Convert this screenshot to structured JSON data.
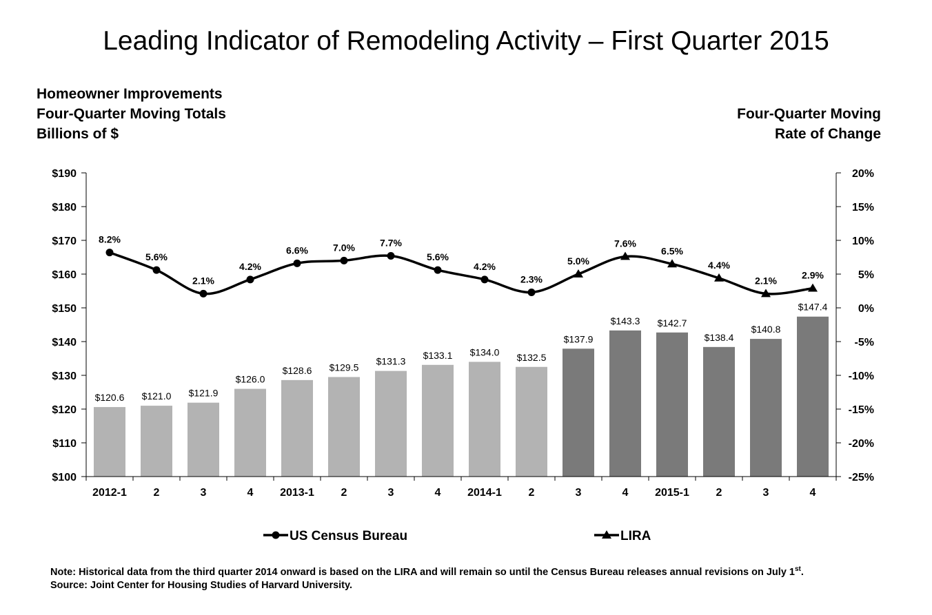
{
  "title": "Leading Indicator of Remodeling Activity – First Quarter 2015",
  "left_axis_title": [
    "Homeowner Improvements",
    "Four-Quarter Moving Totals",
    "Billions of $"
  ],
  "right_axis_title": [
    "Four-Quarter Moving",
    "Rate of Change"
  ],
  "note": {
    "line1": "Note: Historical data from the third quarter 2014 onward is based on the LIRA and will remain so until the Census Bureau releases annual revisions on July 1",
    "line1_sup": "st",
    "line1_end": ".",
    "source": "Source: Joint Center for Housing Studies of Harvard University."
  },
  "colors": {
    "census_bar": "#b3b3b3",
    "lira_bar": "#7a7a7a",
    "line": "#000000"
  },
  "chart_data": {
    "type": "bar",
    "categories": [
      "2012-1",
      "2",
      "3",
      "4",
      "2013-1",
      "2",
      "3",
      "4",
      "2014-1",
      "2",
      "3",
      "4",
      "2015-1",
      "2",
      "3",
      "4"
    ],
    "bars": {
      "values": [
        120.6,
        121.0,
        121.9,
        126.0,
        128.6,
        129.5,
        131.3,
        133.1,
        134.0,
        132.5,
        137.9,
        143.3,
        142.7,
        138.4,
        140.8,
        147.4
      ],
      "labels": [
        "$120.6",
        "$121.0",
        "$121.9",
        "$126.0",
        "$128.6",
        "$129.5",
        "$131.3",
        "$133.1",
        "$134.0",
        "$132.5",
        "$137.9",
        "$143.3",
        "$142.7",
        "$138.4",
        "$140.8",
        "$147.4"
      ],
      "source": [
        "census",
        "census",
        "census",
        "census",
        "census",
        "census",
        "census",
        "census",
        "census",
        "census",
        "lira",
        "lira",
        "lira",
        "lira",
        "lira",
        "lira"
      ]
    },
    "line": {
      "values": [
        8.2,
        5.6,
        2.1,
        4.2,
        6.6,
        7.0,
        7.7,
        5.6,
        4.2,
        2.3,
        5.0,
        7.6,
        6.5,
        4.4,
        2.1,
        2.9
      ],
      "labels": [
        "8.2%",
        "5.6%",
        "2.1%",
        "4.2%",
        "6.6%",
        "7.0%",
        "7.7%",
        "5.6%",
        "4.2%",
        "2.3%",
        "5.0%",
        "7.6%",
        "6.5%",
        "4.4%",
        "2.1%",
        "2.9%"
      ],
      "census_count": 10
    },
    "legend": [
      {
        "name": "US Census Bureau",
        "marker": "circle"
      },
      {
        "name": "LIRA",
        "marker": "triangle"
      }
    ],
    "left_axis": {
      "min": 100,
      "max": 190,
      "step": 10,
      "tick_labels": [
        "$100",
        "$110",
        "$120",
        "$130",
        "$140",
        "$150",
        "$160",
        "$170",
        "$180",
        "$190"
      ]
    },
    "right_axis": {
      "min": -25,
      "max": 20,
      "step": 5,
      "tick_labels": [
        "-25%",
        "-20%",
        "-15%",
        "-10%",
        "-5%",
        "0%",
        "5%",
        "10%",
        "15%",
        "20%"
      ]
    },
    "legend_position": "bottom",
    "grid": false
  }
}
